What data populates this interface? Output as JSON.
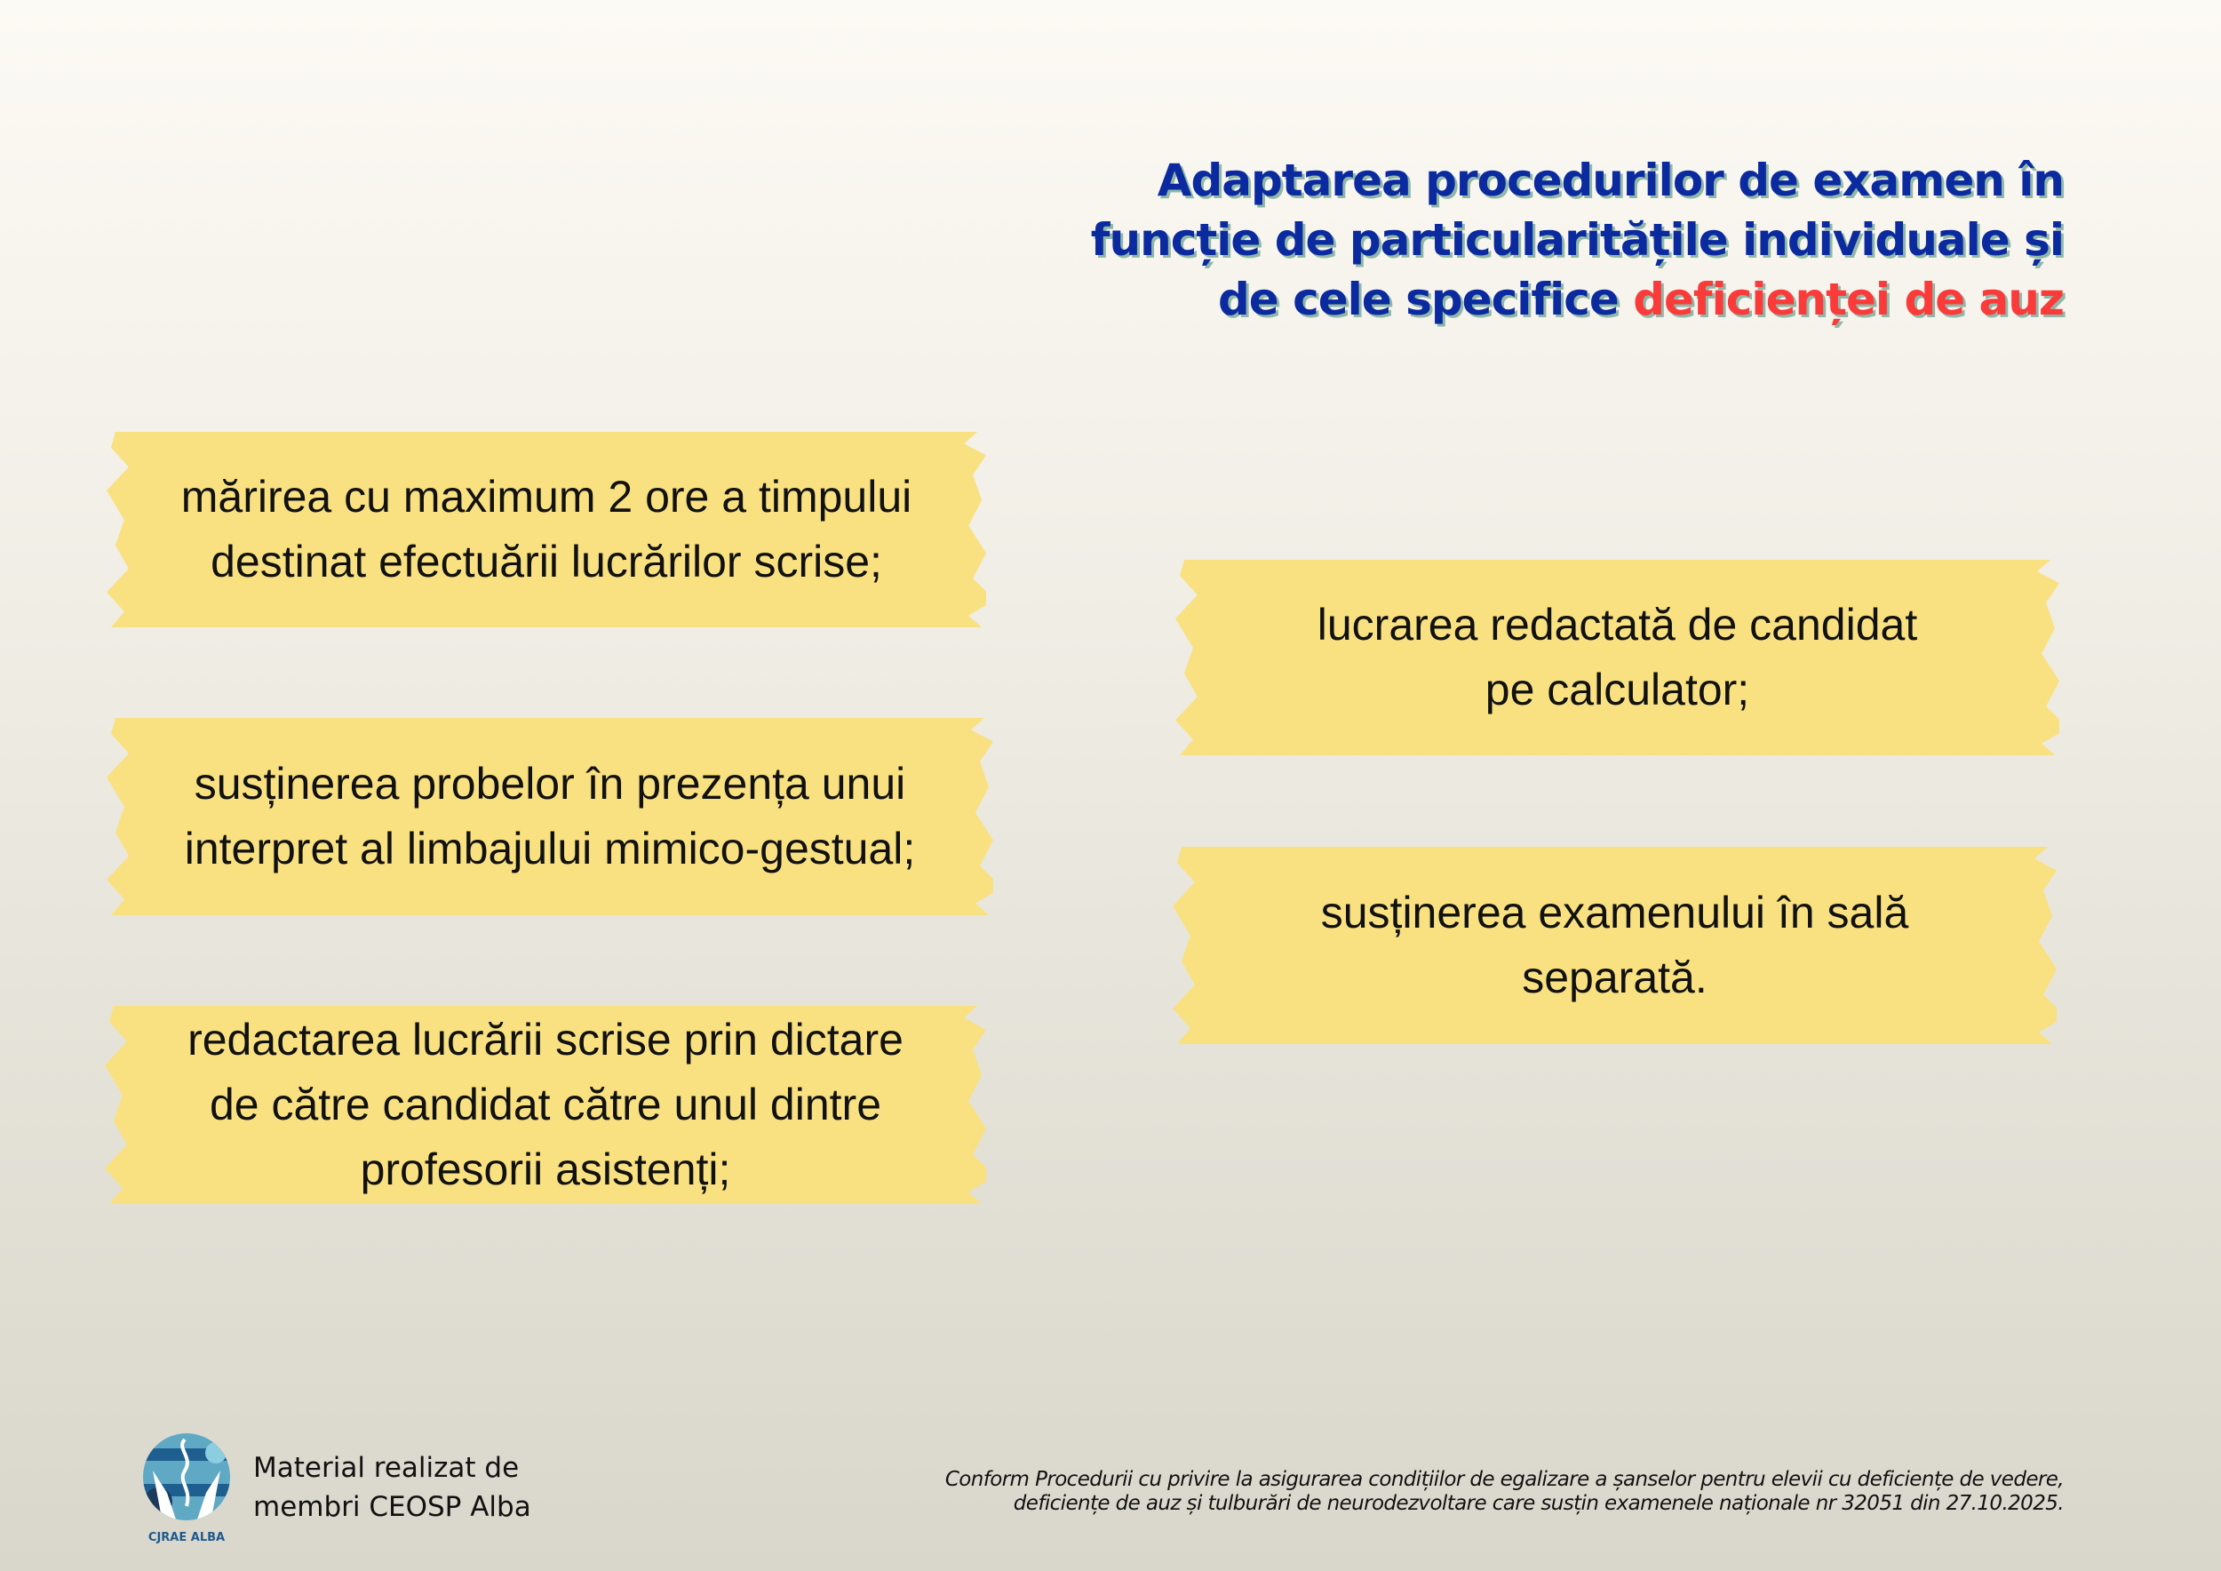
{
  "title": {
    "line1": "Adaptarea procedurilor de examen în",
    "line2": "funcție de particularitățile individuale și",
    "line3_prefix": "de cele specifice ",
    "line3_highlight": "deficienței de auz",
    "color_main": "#0b2aa0",
    "color_highlight": "#fb3a3a"
  },
  "tapes_left": [
    {
      "line1": "mărirea cu maximum 2 ore a timpului",
      "line2": "destinat efectuării lucrărilor scrise;"
    },
    {
      "line1": "susținerea probelor în prezența unui",
      "line2": "interpret al limbajului mimico-gestual;"
    },
    {
      "line1": "redactarea lucrării scrise prin dictare",
      "line2": "de către candidat către unul dintre",
      "line3": "profesorii asistenți;"
    }
  ],
  "tapes_right": [
    {
      "line1": "lucrarea redactată de candidat",
      "line2": "pe calculator;"
    },
    {
      "line1": "susținerea examenului în sală",
      "line2": "separată."
    }
  ],
  "footer": {
    "logo_text": "CJRAE ALBA",
    "credit_line1": "Material realizat de",
    "credit_line2": "membri CEOSP Alba",
    "source_line1": "Conform Procedurii cu privire la asigurarea condițiilor de egalizare a șanselor pentru elevii cu deficiențe de vedere,",
    "source_line2": "deficiențe de auz și tulburări de neurodezvoltare care susțin examenele naționale nr 32051 din 27.10.2025."
  },
  "colors": {
    "tape": "#f9e181"
  }
}
